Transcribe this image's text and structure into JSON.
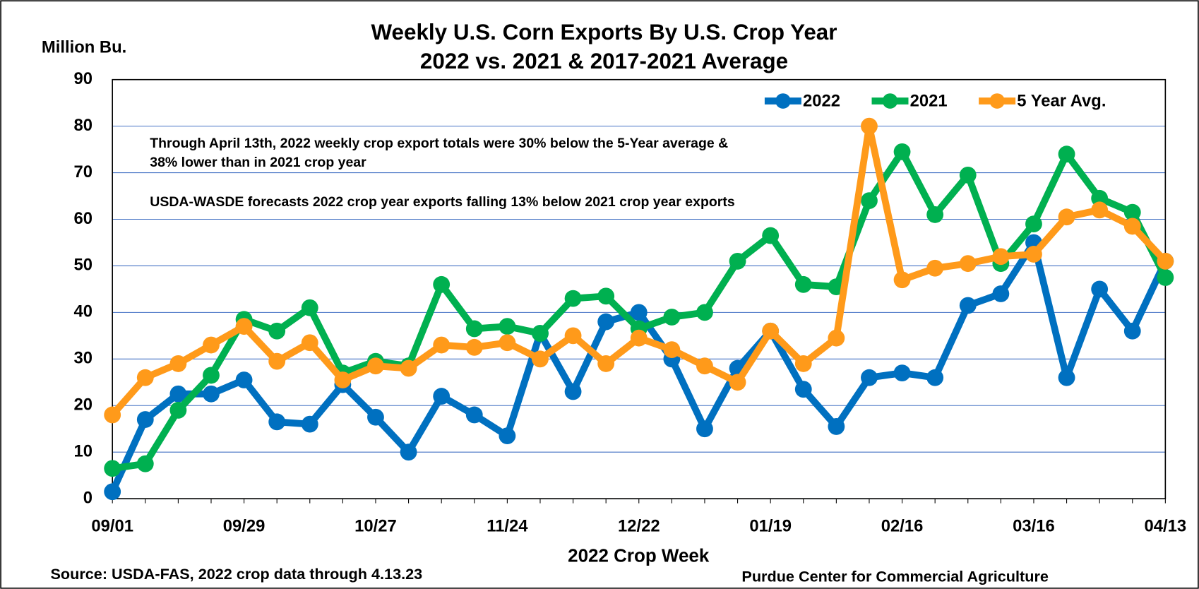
{
  "chart_data": {
    "type": "line",
    "title": "Weekly U.S. Corn Exports By U.S. Crop Year",
    "subtitle": "2022 vs. 2021 & 2017-2021 Average",
    "y_label": "Million Bu.",
    "x_label": "2022 Crop Week",
    "annotations": [
      "Through April 13th, 2022 weekly crop export totals were 30% below the 5-Year average &",
      "38% lower than in 2021 crop year",
      "USDA-WASDE forecasts 2022 crop year exports falling 13% below 2021 crop year exports"
    ],
    "source": "Source: USDA-FAS, 2022 crop data through 4.13.23",
    "credit": "Purdue Center for Commercial Agriculture",
    "categories": [
      "09/01",
      null,
      null,
      null,
      "09/29",
      null,
      null,
      null,
      "10/27",
      null,
      null,
      null,
      "11/24",
      null,
      null,
      null,
      "12/22",
      null,
      null,
      null,
      "01/19",
      null,
      null,
      null,
      "02/16",
      null,
      null,
      null,
      "03/16",
      null,
      null,
      null,
      "04/13"
    ],
    "series": [
      {
        "name": "2022",
        "color": "#0070c0",
        "values": [
          1.5,
          17,
          22.5,
          22.5,
          25.5,
          16.5,
          16,
          24.5,
          17.5,
          10,
          22,
          18,
          13.5,
          35.5,
          23,
          38,
          40,
          30,
          15,
          28,
          36,
          23.5,
          15.5,
          26,
          27,
          26,
          41.5,
          44,
          55,
          26,
          45,
          36,
          51
        ]
      },
      {
        "name": "2021",
        "color": "#00b050",
        "values": [
          6.5,
          7.5,
          19,
          26.5,
          38.5,
          36,
          41,
          27,
          29.5,
          28.5,
          46,
          36.5,
          37,
          35.5,
          43,
          43.5,
          36.5,
          39,
          40,
          51,
          56.5,
          46,
          45.5,
          64,
          74.5,
          61,
          69.5,
          50.5,
          59,
          74,
          64.5,
          61.5,
          47.5
        ]
      },
      {
        "name": "5 Year Avg.",
        "color": "#ff9a1a",
        "values": [
          18,
          26,
          29,
          33,
          37,
          29.5,
          33.5,
          25.5,
          28.5,
          28,
          33,
          32.5,
          33.5,
          30,
          35,
          29,
          34.5,
          32,
          28.5,
          25,
          36,
          29,
          34.5,
          80,
          47,
          49.5,
          50.5,
          52,
          52.5,
          60.5,
          62,
          58.5,
          51
        ]
      }
    ],
    "ylim": [
      0,
      90
    ],
    "yticks": [
      0,
      10,
      20,
      30,
      40,
      50,
      60,
      70,
      80,
      90
    ],
    "grid": true,
    "legend": "top-right"
  }
}
